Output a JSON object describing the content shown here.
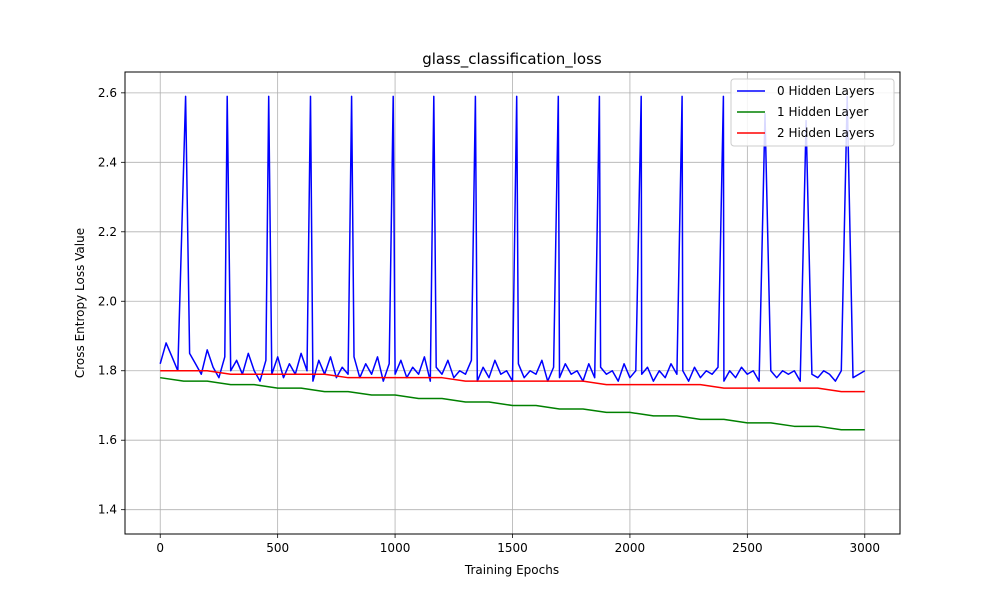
{
  "chart_data": {
    "type": "line",
    "title": "glass_classification_loss",
    "xlabel": "Training Epochs",
    "ylabel": "Cross Entropy Loss Value",
    "xlim": [
      -150,
      3150
    ],
    "ylim": [
      1.33,
      2.66
    ],
    "xticks": [
      0,
      500,
      1000,
      1500,
      2000,
      2500,
      3000
    ],
    "yticks": [
      1.4,
      1.6,
      1.8,
      2.0,
      2.2,
      2.4,
      2.6
    ],
    "ytick_labels": [
      "1.4",
      "1.6",
      "1.8",
      "2.0",
      "2.2",
      "2.4",
      "2.6"
    ],
    "grid": true,
    "legend_position": "top-right",
    "series": [
      {
        "name": "0 Hidden Layers",
        "color": "#0000ff",
        "x": [
          0,
          25,
          50,
          75,
          108,
          125,
          150,
          175,
          200,
          225,
          250,
          275,
          285,
          300,
          325,
          350,
          375,
          400,
          425,
          450,
          462,
          475,
          500,
          525,
          550,
          575,
          600,
          625,
          640,
          650,
          675,
          700,
          725,
          750,
          775,
          800,
          815,
          825,
          850,
          875,
          900,
          925,
          950,
          975,
          992,
          1000,
          1025,
          1050,
          1075,
          1100,
          1125,
          1150,
          1165,
          1175,
          1200,
          1225,
          1250,
          1275,
          1300,
          1325,
          1342,
          1350,
          1375,
          1400,
          1425,
          1450,
          1475,
          1500,
          1518,
          1525,
          1550,
          1575,
          1600,
          1625,
          1650,
          1675,
          1695,
          1700,
          1725,
          1750,
          1775,
          1800,
          1825,
          1850,
          1870,
          1875,
          1900,
          1925,
          1950,
          1975,
          2000,
          2025,
          2048,
          2050,
          2075,
          2100,
          2125,
          2150,
          2175,
          2200,
          2222,
          2225,
          2250,
          2275,
          2300,
          2325,
          2350,
          2375,
          2398,
          2400,
          2425,
          2450,
          2475,
          2500,
          2525,
          2550,
          2575,
          2600,
          2625,
          2650,
          2675,
          2700,
          2725,
          2750,
          2775,
          2800,
          2825,
          2850,
          2875,
          2900,
          2925,
          2950,
          2975,
          3000
        ],
        "y": [
          1.82,
          1.88,
          1.84,
          1.8,
          2.59,
          1.85,
          1.82,
          1.79,
          1.86,
          1.81,
          1.78,
          1.84,
          2.59,
          1.8,
          1.83,
          1.79,
          1.85,
          1.8,
          1.77,
          1.83,
          2.59,
          1.79,
          1.84,
          1.78,
          1.82,
          1.79,
          1.85,
          1.8,
          2.59,
          1.77,
          1.83,
          1.79,
          1.84,
          1.78,
          1.81,
          1.79,
          2.59,
          1.84,
          1.78,
          1.82,
          1.79,
          1.84,
          1.77,
          1.82,
          2.59,
          1.79,
          1.83,
          1.78,
          1.81,
          1.79,
          1.84,
          1.77,
          2.59,
          1.81,
          1.79,
          1.83,
          1.78,
          1.8,
          1.79,
          1.83,
          2.59,
          1.77,
          1.81,
          1.78,
          1.83,
          1.79,
          1.8,
          1.77,
          2.59,
          1.82,
          1.78,
          1.8,
          1.79,
          1.83,
          1.77,
          1.81,
          2.59,
          1.78,
          1.82,
          1.79,
          1.8,
          1.77,
          1.82,
          1.78,
          2.59,
          1.81,
          1.79,
          1.8,
          1.77,
          1.82,
          1.78,
          1.8,
          2.59,
          1.79,
          1.81,
          1.77,
          1.8,
          1.78,
          1.82,
          1.79,
          2.59,
          1.8,
          1.77,
          1.81,
          1.78,
          1.8,
          1.79,
          1.81,
          2.59,
          1.77,
          1.8,
          1.78,
          1.81,
          1.79,
          1.8,
          1.77,
          2.54,
          1.8,
          1.78,
          1.8,
          1.79,
          1.8,
          1.77,
          2.52,
          1.79,
          1.78,
          1.8,
          1.79,
          1.77,
          1.8,
          2.59,
          1.78,
          1.79,
          1.8
        ]
      },
      {
        "name": "1 Hidden Layer",
        "color": "#008000",
        "x": [
          0,
          100,
          200,
          300,
          400,
          500,
          600,
          700,
          800,
          900,
          1000,
          1100,
          1200,
          1300,
          1400,
          1500,
          1600,
          1700,
          1800,
          1900,
          2000,
          2100,
          2200,
          2300,
          2400,
          2500,
          2600,
          2700,
          2800,
          2900,
          3000
        ],
        "y": [
          1.78,
          1.77,
          1.77,
          1.76,
          1.76,
          1.75,
          1.75,
          1.74,
          1.74,
          1.73,
          1.73,
          1.72,
          1.72,
          1.71,
          1.71,
          1.7,
          1.7,
          1.69,
          1.69,
          1.68,
          1.68,
          1.67,
          1.67,
          1.66,
          1.66,
          1.65,
          1.65,
          1.64,
          1.64,
          1.63,
          1.63
        ]
      },
      {
        "name": "2 Hidden Layers",
        "color": "#ff0000",
        "x": [
          0,
          100,
          200,
          300,
          400,
          500,
          600,
          700,
          800,
          900,
          1000,
          1100,
          1200,
          1300,
          1400,
          1500,
          1600,
          1700,
          1800,
          1900,
          2000,
          2100,
          2200,
          2300,
          2400,
          2500,
          2600,
          2700,
          2800,
          2900,
          3000
        ],
        "y": [
          1.8,
          1.8,
          1.8,
          1.79,
          1.79,
          1.79,
          1.79,
          1.79,
          1.78,
          1.78,
          1.78,
          1.78,
          1.78,
          1.77,
          1.77,
          1.77,
          1.77,
          1.77,
          1.77,
          1.76,
          1.76,
          1.76,
          1.76,
          1.76,
          1.75,
          1.75,
          1.75,
          1.75,
          1.75,
          1.74,
          1.74
        ]
      }
    ]
  }
}
